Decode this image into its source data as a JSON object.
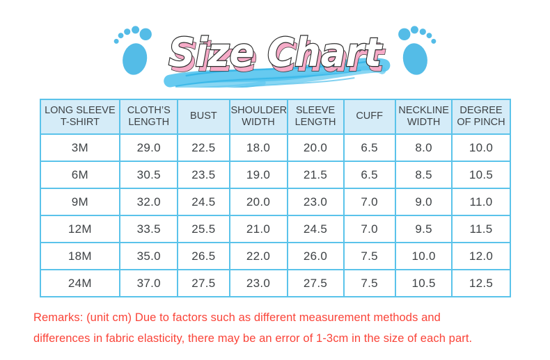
{
  "title": {
    "text": "Size Chart"
  },
  "icons": {
    "left": "footprint-left-icon",
    "right": "footprint-right-icon",
    "brush": "brush-stroke"
  },
  "table": {
    "headers": [
      "LONG SLEEVE T-SHIRT",
      "CLOTH’S LENGTH",
      "BUST",
      "SHOULDER WIDTH",
      "SLEEVE LENGTH",
      "CUFF",
      "NECKLINE WIDTH",
      "DEGREE OF PINCH"
    ],
    "rows": [
      [
        "3M",
        "29.0",
        "22.5",
        "18.0",
        "20.0",
        "6.5",
        "8.0",
        "10.0"
      ],
      [
        "6M",
        "30.5",
        "23.5",
        "19.0",
        "21.5",
        "6.5",
        "8.5",
        "10.5"
      ],
      [
        "9M",
        "32.0",
        "24.5",
        "20.0",
        "23.0",
        "7.0",
        "9.0",
        "11.0"
      ],
      [
        "12M",
        "33.5",
        "25.5",
        "21.0",
        "24.5",
        "7.0",
        "9.5",
        "11.5"
      ],
      [
        "18M",
        "35.0",
        "26.5",
        "22.0",
        "26.0",
        "7.5",
        "10.0",
        "12.0"
      ],
      [
        "24M",
        "37.0",
        "27.5",
        "23.0",
        "27.5",
        "7.5",
        "10.5",
        "12.5"
      ]
    ]
  },
  "remarks": {
    "text": "Remarks: (unit cm) Due to factors such as different measurement methods and differences in fabric elasticity, there may be an error of 1-3cm in the size of each part."
  },
  "colors": {
    "footprint_blue": "#54bce7",
    "brush_blue": "#55c4ee",
    "table_border": "#5ac3ea",
    "header_bg": "#d5ecf8",
    "text_dark": "#3e4245",
    "remarks_red": "#fa4338",
    "title_shadow_pink": "#f5aac7",
    "title_fill": "#ffffff",
    "title_outline": "#2b2b2b"
  }
}
